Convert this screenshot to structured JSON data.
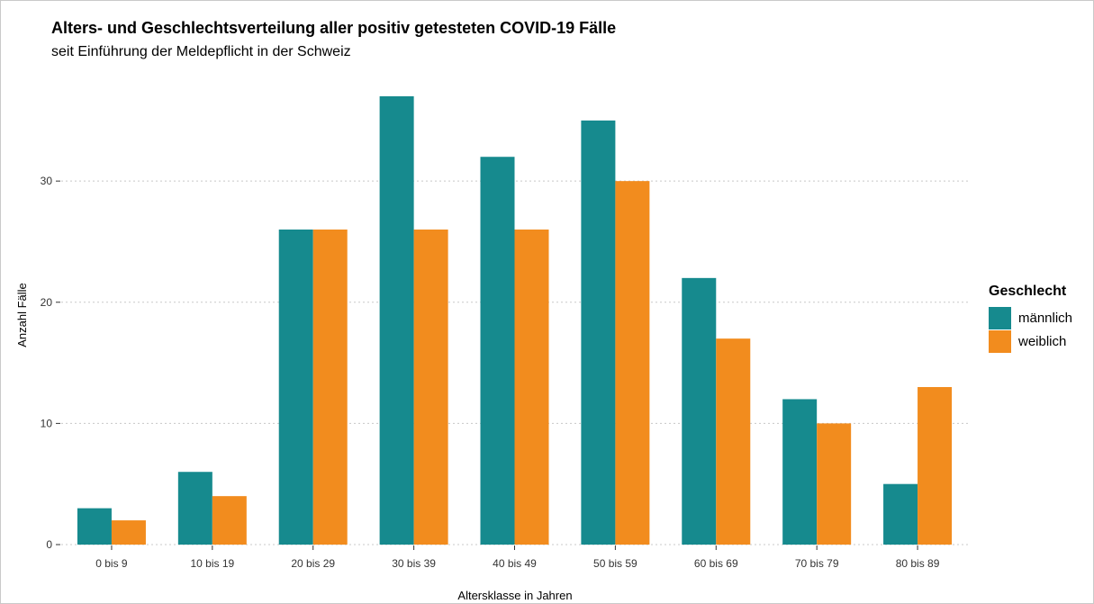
{
  "chart_data": {
    "type": "bar",
    "title": "Alters- und Geschlechtsverteilung aller positiv getesteten COVID-19 Fälle",
    "subtitle": "seit Einführung der Meldepflicht in der Schweiz",
    "xlabel": "Altersklasse in Jahren",
    "ylabel": "Anzahl Fälle",
    "categories": [
      "0 bis 9",
      "10 bis 19",
      "20 bis 29",
      "30 bis 39",
      "40 bis 49",
      "50 bis 59",
      "60 bis 69",
      "70 bis 79",
      "80 bis 89"
    ],
    "series": [
      {
        "name": "männlich",
        "values": [
          3,
          6,
          26,
          37,
          32,
          35,
          22,
          12,
          5
        ],
        "color": "#168A8E"
      },
      {
        "name": "weiblich",
        "values": [
          2,
          4,
          26,
          26,
          26,
          30,
          17,
          10,
          13
        ],
        "color": "#F28C1E"
      }
    ],
    "yticks": [
      0,
      10,
      20,
      30
    ],
    "ylim": [
      0,
      39
    ],
    "grid": "horizontal-dotted",
    "legend": {
      "title": "Geschlecht",
      "placement": "right"
    }
  }
}
